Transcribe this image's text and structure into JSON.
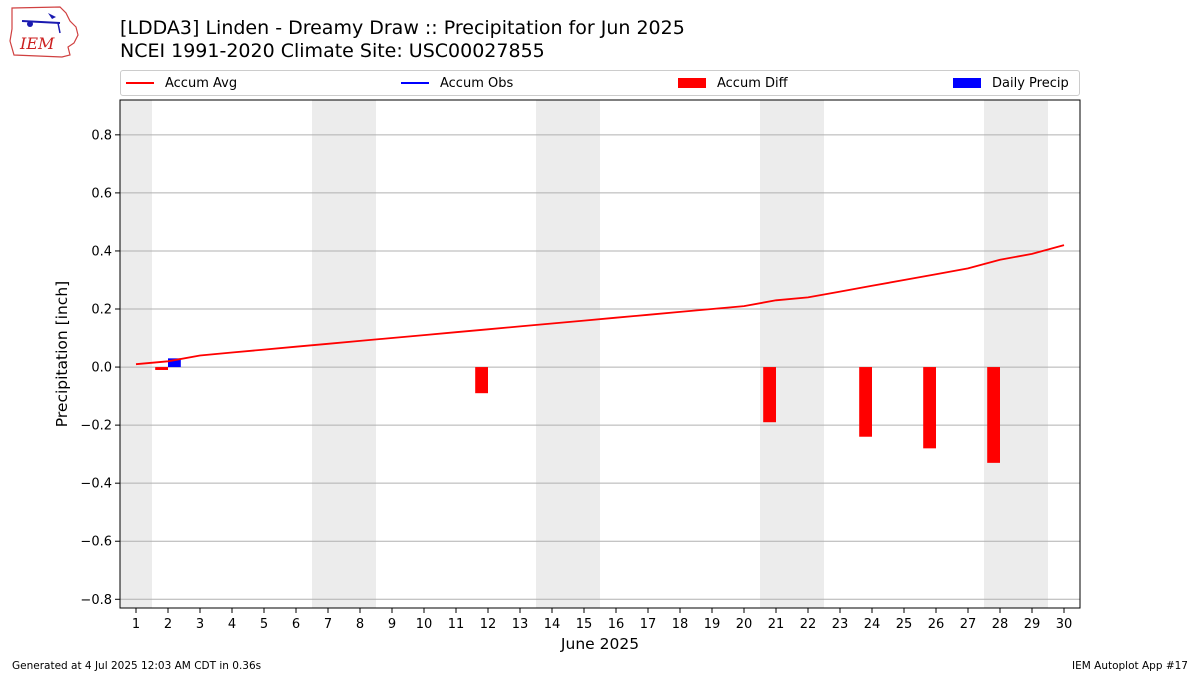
{
  "header": {
    "title_line1": "[LDDA3] Linden - Dreamy Draw :: Precipitation for Jun 2025",
    "title_line2": "NCEI 1991-2020 Climate Site: USC00027855",
    "logo_text": "IEM"
  },
  "footer": {
    "generated": "Generated at 4 Jul 2025 12:03 AM CDT in 0.36s",
    "app": "IEM Autoplot App #17"
  },
  "colors": {
    "accum_avg": "#ff0000",
    "accum_obs": "#0000ff",
    "accum_diff": "#ff0000",
    "daily_precip": "#0000ff",
    "weekend_shade": "#ececec",
    "grid": "#b0b0b0"
  },
  "chart_data": {
    "type": "bar",
    "xlabel": "June 2025",
    "ylabel": "Precipitation [inch]",
    "xlim": [
      0.5,
      30.5
    ],
    "ylim": [
      -0.83,
      0.92
    ],
    "yticks": [
      -0.8,
      -0.6,
      -0.4,
      -0.2,
      0.0,
      0.2,
      0.4,
      0.6,
      0.8
    ],
    "ytick_labels": [
      "−0.8",
      "−0.6",
      "−0.4",
      "−0.2",
      "0.0",
      "0.2",
      "0.4",
      "0.6",
      "0.8"
    ],
    "x": [
      1,
      2,
      3,
      4,
      5,
      6,
      7,
      8,
      9,
      10,
      11,
      12,
      13,
      14,
      15,
      16,
      17,
      18,
      19,
      20,
      21,
      22,
      23,
      24,
      25,
      26,
      27,
      28,
      29,
      30
    ],
    "xtick_labels": [
      "1",
      "2",
      "3",
      "4",
      "5",
      "6",
      "7",
      "8",
      "9",
      "10",
      "11",
      "12",
      "13",
      "14",
      "15",
      "16",
      "17",
      "18",
      "19",
      "20",
      "21",
      "22",
      "23",
      "24",
      "25",
      "26",
      "27",
      "28",
      "29",
      "30"
    ],
    "grid": "y",
    "legend_placement": "top",
    "weekend_days": [
      1,
      7,
      8,
      14,
      15,
      21,
      22,
      28,
      29
    ],
    "legend": [
      {
        "label": "Accum Avg",
        "style": "line",
        "color": "#ff0000"
      },
      {
        "label": "Accum Obs",
        "style": "line",
        "color": "#0000ff"
      },
      {
        "label": "Accum Diff",
        "style": "bar",
        "color": "#ff0000"
      },
      {
        "label": "Daily Precip",
        "style": "bar",
        "color": "#0000ff"
      }
    ],
    "series": [
      {
        "name": "Accum Avg",
        "type": "line",
        "x": [
          1,
          2,
          3,
          4,
          5,
          6,
          7,
          8,
          9,
          10,
          11,
          12,
          13,
          14,
          15,
          16,
          17,
          18,
          19,
          20,
          21,
          22,
          23,
          24,
          25,
          26,
          27,
          28,
          29,
          30
        ],
        "values": [
          0.01,
          0.02,
          0.04,
          0.05,
          0.06,
          0.07,
          0.08,
          0.09,
          0.1,
          0.11,
          0.12,
          0.13,
          0.14,
          0.15,
          0.16,
          0.17,
          0.18,
          0.19,
          0.2,
          0.21,
          0.23,
          0.24,
          0.26,
          0.28,
          0.3,
          0.32,
          0.34,
          0.37,
          0.39,
          0.42
        ]
      },
      {
        "name": "Accum Diff",
        "type": "bar",
        "x": [
          2,
          12,
          21,
          24,
          26,
          28
        ],
        "values": [
          -0.01,
          -0.09,
          -0.19,
          -0.24,
          -0.28,
          -0.33
        ]
      },
      {
        "name": "Daily Precip",
        "type": "bar",
        "x": [
          2
        ],
        "values": [
          0.03
        ]
      }
    ]
  }
}
